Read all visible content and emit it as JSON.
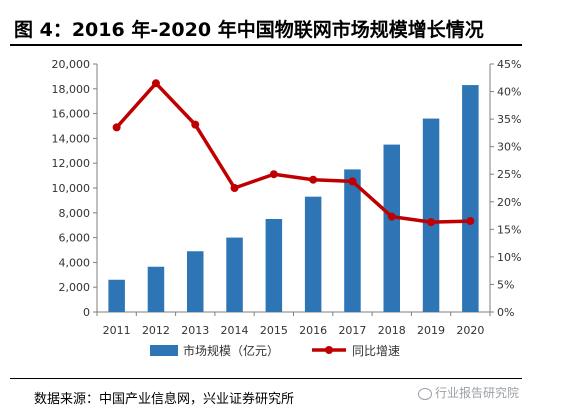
{
  "title": "图 4：2016 年-2020 年中国物联网市场规模增长情况",
  "source": "数据来源：中国产业信息网，兴业证券研究所",
  "watermark": "行业报告研究院",
  "colors": {
    "bar": "#2e75b6",
    "line": "#c00000",
    "axis": "#7f7f7f",
    "text": "#333333"
  },
  "chart_data": {
    "type": "bar",
    "categories": [
      "2011",
      "2012",
      "2013",
      "2014",
      "2015",
      "2016",
      "2017",
      "2018",
      "2019",
      "2020"
    ],
    "series": [
      {
        "name": "市场规模（亿元）",
        "type": "bar",
        "axis": "left",
        "values": [
          2600,
          3650,
          4900,
          6000,
          7500,
          9300,
          11500,
          13500,
          15600,
          18300
        ]
      },
      {
        "name": "同比增速",
        "type": "line",
        "axis": "right",
        "values": [
          33.5,
          41.5,
          34.0,
          22.5,
          25.0,
          24.0,
          23.7,
          17.3,
          16.3,
          16.5
        ]
      }
    ],
    "y_left": {
      "min": 0,
      "max": 20000,
      "ticks": [
        "0",
        "2,000",
        "4,000",
        "6,000",
        "8,000",
        "10,000",
        "12,000",
        "14,000",
        "16,000",
        "18,000",
        "20,000"
      ]
    },
    "y_right": {
      "min": 0,
      "max": 45,
      "ticks": [
        "0%",
        "5%",
        "10%",
        "15%",
        "20%",
        "25%",
        "30%",
        "35%",
        "40%",
        "45%"
      ]
    },
    "legend": {
      "position": "bottom"
    },
    "grid": false
  }
}
